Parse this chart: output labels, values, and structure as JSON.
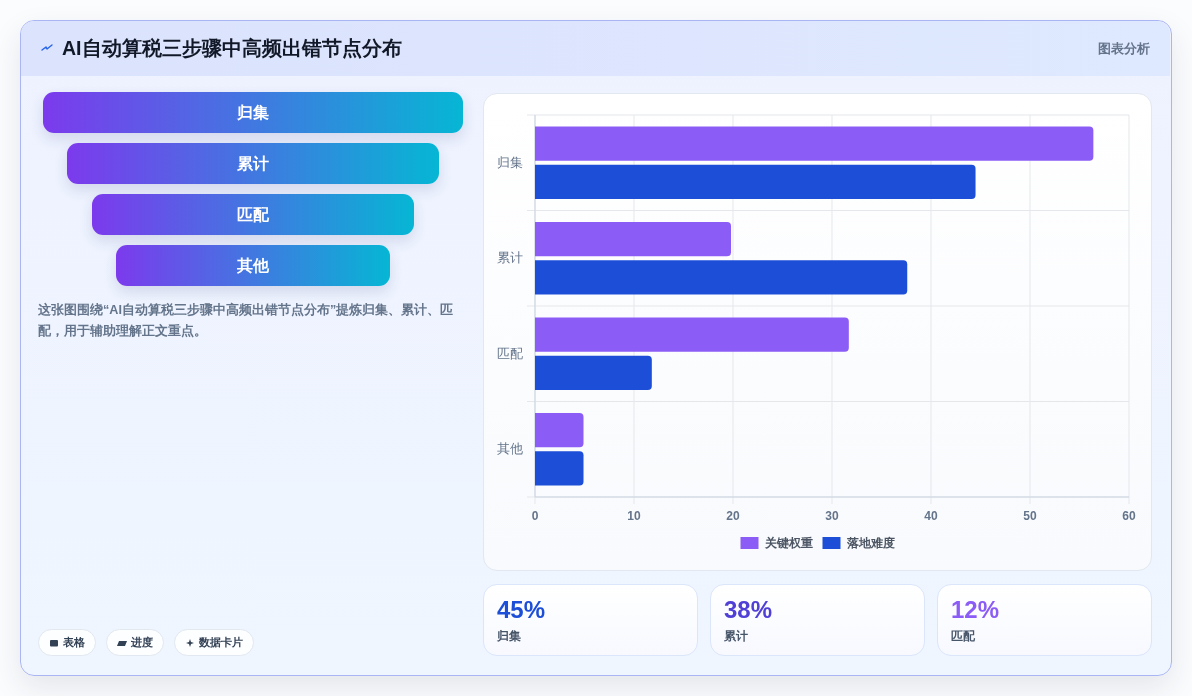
{
  "chart_data": [
    {
      "type": "other",
      "title": "AI自动算税三步骤中高频出错节点分布",
      "subtitle": "图表分析"
    },
    {
      "type": "other",
      "categories": [
        "归集",
        "累计",
        "匹配",
        "其他"
      ],
      "annotations": [
        "这张图围绕“AI自动算税三步骤中高频出错节点分布”提炼归集、累计、匹配，用于辅助理解正文重点。"
      ]
    },
    {
      "type": "bar",
      "orientation": "horizontal",
      "categories": [
        "归集",
        "累计",
        "匹配",
        "其他"
      ],
      "series": [
        {
          "name": "关键权重",
          "color": "#8b5cf6",
          "values": [
            56.4,
            19.8,
            31.7,
            4.9
          ]
        },
        {
          "name": "落地难度",
          "color": "#1d4ed8",
          "values": [
            44.5,
            37.6,
            11.8,
            4.9
          ]
        }
      ],
      "xlim": [
        0,
        60
      ],
      "xticks": [
        0,
        10,
        20,
        30,
        40,
        50,
        60
      ],
      "grid": true,
      "legend": "bottom"
    },
    {
      "type": "other",
      "categories": [
        "归集",
        "累计",
        "匹配"
      ],
      "value_labels": [
        "45%",
        "38%",
        "12%"
      ]
    },
    {
      "type": "other",
      "annotations": [
        "表格",
        "进度",
        "数据卡片"
      ]
    }
  ]
}
